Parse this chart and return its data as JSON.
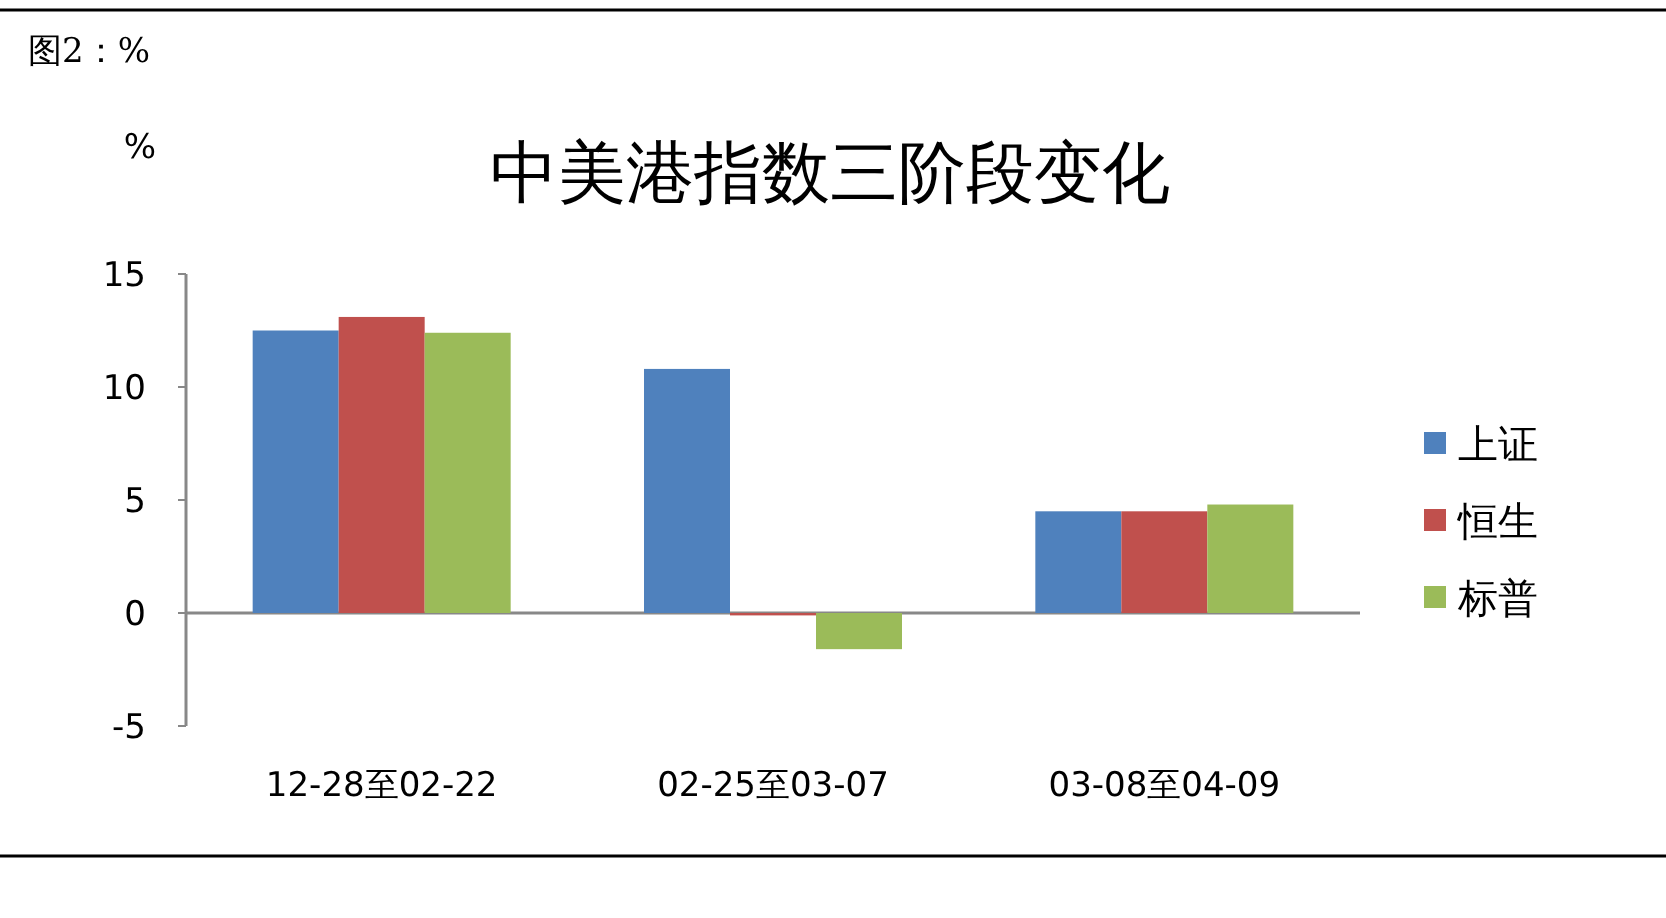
{
  "chart_data": {
    "type": "bar",
    "title": "中美港指数三阶段变化",
    "subtitle": "图2：%",
    "ylabel": "%",
    "categories": [
      "12-28至02-22",
      "02-25至03-07",
      "03-08至04-09"
    ],
    "series": [
      {
        "name": "上证",
        "color": "#4f81bd",
        "values": [
          12.5,
          10.8,
          4.5
        ]
      },
      {
        "name": "恒生",
        "color": "#c0504d",
        "values": [
          13.1,
          -0.1,
          4.5
        ]
      },
      {
        "name": "标普",
        "color": "#9bbb59",
        "values": [
          12.4,
          -1.6,
          4.8
        ]
      }
    ],
    "ylim": [
      -5,
      15
    ],
    "yticks": [
      -5,
      0,
      5,
      10,
      15
    ],
    "legend": "right"
  }
}
